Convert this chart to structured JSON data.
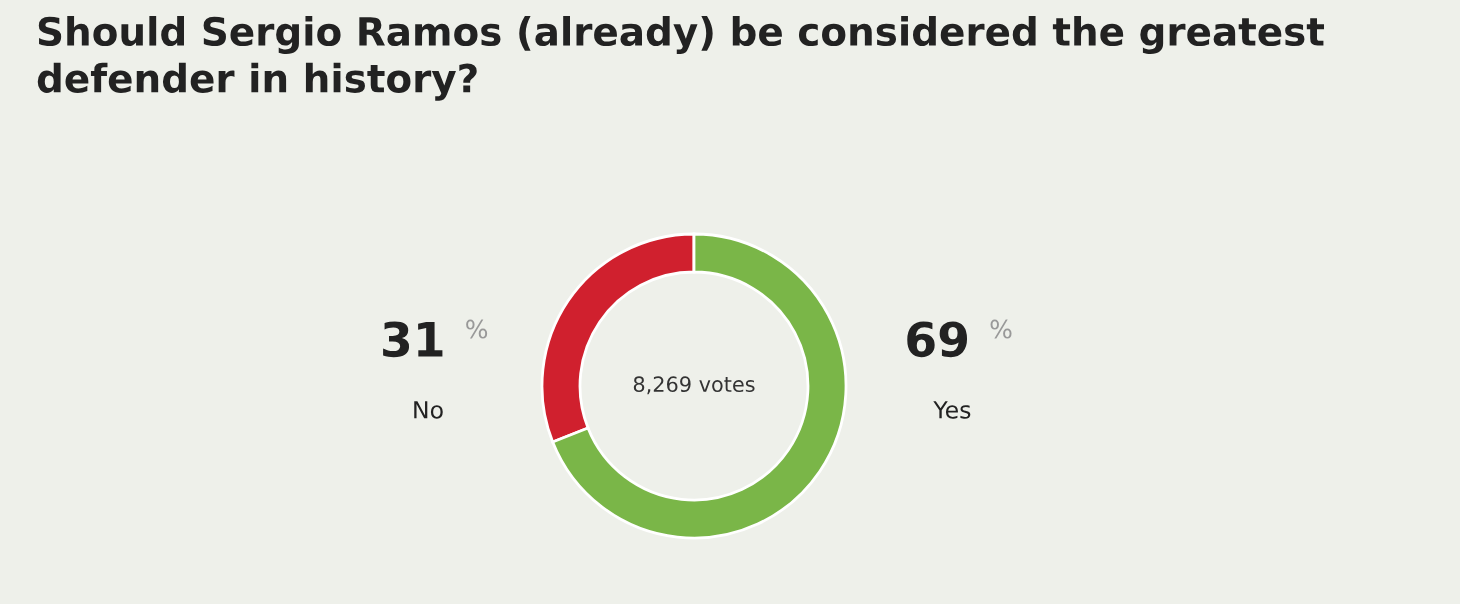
{
  "chart_data": {
    "type": "donut",
    "title": "Should Sergio Ramos (already) be considered the greatest\ndefender in history?",
    "categories": [
      "No",
      "Yes"
    ],
    "values": [
      31,
      69
    ],
    "colors": [
      "#d0202e",
      "#7ab648"
    ],
    "value_labels": [
      "31 %",
      "69 %"
    ],
    "annotations": [
      "8,269 votes"
    ]
  }
}
